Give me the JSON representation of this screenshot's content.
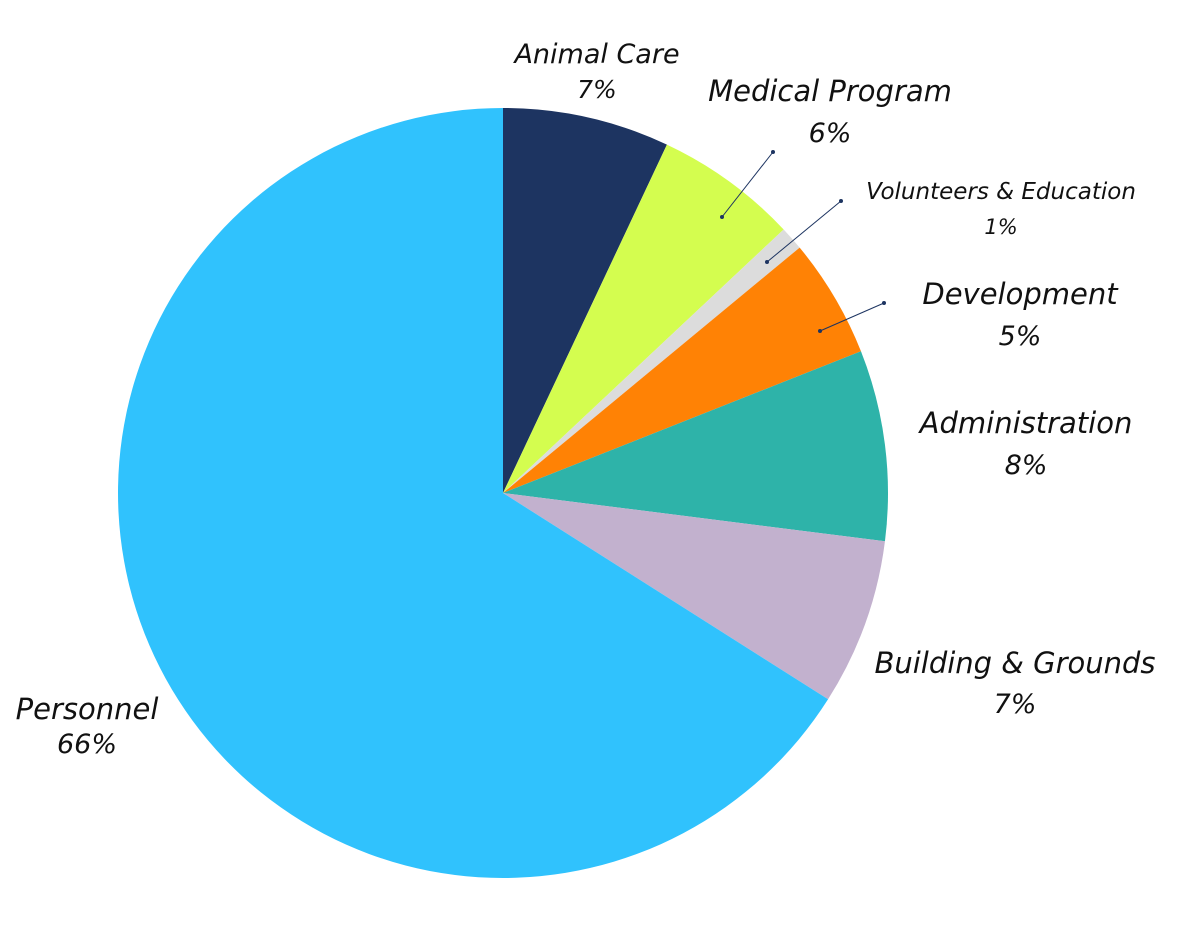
{
  "chart_data": {
    "type": "pie",
    "title": "",
    "slices": [
      {
        "label": "Animal Care",
        "value": 7,
        "value_label": "7%",
        "color": "#1d3461"
      },
      {
        "label": "Medical Program",
        "value": 6,
        "value_label": "6%",
        "color": "#d4fd4f"
      },
      {
        "label": "Volunteers & Education",
        "value": 1,
        "value_label": "1%",
        "color": "#dcdcdc"
      },
      {
        "label": "Development",
        "value": 5,
        "value_label": "5%",
        "color": "#ff8205"
      },
      {
        "label": "Administration",
        "value": 8,
        "value_label": "8%",
        "color": "#2eb3a9"
      },
      {
        "label": "Building & Grounds",
        "value": 7,
        "value_label": "7%",
        "color": "#c2b1ce"
      },
      {
        "label": "Personnel",
        "value": 66,
        "value_label": "66%",
        "color": "#30c2fd"
      }
    ],
    "start_angle": "12 o'clock",
    "direction": "clockwise",
    "legend": "none (labels placed beside slices)",
    "leader_line_color": "#1d3461"
  }
}
